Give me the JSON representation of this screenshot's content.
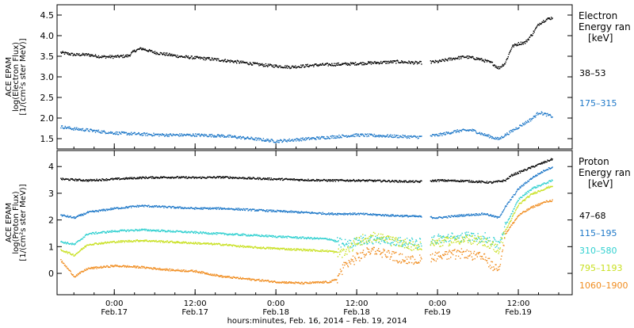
{
  "xaxis": {
    "title": "hours:minutes, Feb. 16, 2014 – Feb. 19, 2014",
    "ticks": [
      {
        "t": 0,
        "time": "0:00",
        "date": "Feb.17"
      },
      {
        "t": 12,
        "time": "12:00",
        "date": "Feb.17"
      },
      {
        "t": 24,
        "time": "0:00",
        "date": "Feb.18"
      },
      {
        "t": 36,
        "time": "12:00",
        "date": "Feb.18"
      },
      {
        "t": 48,
        "time": "0:00",
        "date": "Feb.19"
      },
      {
        "t": 60,
        "time": "12:00",
        "date": "Feb.19"
      }
    ],
    "range_hours": [
      -8.5,
      68
    ]
  },
  "chart_data": [
    {
      "type": "scatter",
      "ylabel_lines": [
        "ACE EPAM",
        "log(Electron Flux)",
        "[1/(cm²s ster MeV)]"
      ],
      "yrange": [
        1.25,
        4.75
      ],
      "yticks": [
        "1.5",
        "2.0",
        "2.5",
        "3.0",
        "3.5",
        "4.0",
        "4.5"
      ],
      "legend_title": [
        "Electron",
        "Energy ran",
        "[keV]"
      ],
      "series": [
        {
          "name": "38–53",
          "color": "#000000",
          "points": [
            [
              -8,
              3.6
            ],
            [
              -6,
              3.55
            ],
            [
              -4,
              3.55
            ],
            [
              -2,
              3.5
            ],
            [
              0,
              3.5
            ],
            [
              2,
              3.52
            ],
            [
              3,
              3.65
            ],
            [
              4,
              3.7
            ],
            [
              6,
              3.6
            ],
            [
              10,
              3.5
            ],
            [
              14,
              3.45
            ],
            [
              18,
              3.38
            ],
            [
              22,
              3.3
            ],
            [
              26,
              3.25
            ],
            [
              30,
              3.3
            ],
            [
              34,
              3.32
            ],
            [
              38,
              3.35
            ],
            [
              42,
              3.38
            ],
            [
              45,
              3.35
            ],
            [
              48,
              3.38
            ],
            [
              50,
              3.45
            ],
            [
              52,
              3.5
            ],
            [
              54,
              3.45
            ],
            [
              56,
              3.35
            ],
            [
              57,
              3.22
            ],
            [
              58,
              3.35
            ],
            [
              59,
              3.75
            ],
            [
              60,
              3.82
            ],
            [
              61,
              3.85
            ],
            [
              62,
              4.05
            ],
            [
              63,
              4.3
            ],
            [
              64,
              4.4
            ],
            [
              65,
              4.45
            ]
          ]
        },
        {
          "name": "175–315",
          "color": "#1E78C8",
          "points": [
            [
              -8,
              1.8
            ],
            [
              -6,
              1.75
            ],
            [
              -4,
              1.72
            ],
            [
              -2,
              1.68
            ],
            [
              0,
              1.65
            ],
            [
              4,
              1.62
            ],
            [
              8,
              1.6
            ],
            [
              12,
              1.6
            ],
            [
              16,
              1.58
            ],
            [
              20,
              1.52
            ],
            [
              24,
              1.45
            ],
            [
              28,
              1.5
            ],
            [
              32,
              1.55
            ],
            [
              36,
              1.6
            ],
            [
              40,
              1.58
            ],
            [
              45,
              1.55
            ],
            [
              48,
              1.6
            ],
            [
              51,
              1.7
            ],
            [
              53,
              1.72
            ],
            [
              55,
              1.6
            ],
            [
              57,
              1.5
            ],
            [
              58,
              1.6
            ],
            [
              60,
              1.8
            ],
            [
              62,
              2.0
            ],
            [
              63,
              2.15
            ],
            [
              65,
              2.05
            ]
          ]
        }
      ]
    },
    {
      "type": "scatter",
      "ylabel_lines": [
        "ACE EPAM",
        "log(Proton Flux)",
        "[1/(cm²s ster MeV)]"
      ],
      "yrange": [
        -0.8,
        4.6
      ],
      "yticks": [
        "0",
        "1",
        "2",
        "3",
        "4"
      ],
      "legend_title": [
        "Proton",
        "Energy ran",
        "[keV]"
      ],
      "series": [
        {
          "name": "47–68",
          "color": "#000000",
          "points": [
            [
              -8,
              3.55
            ],
            [
              -4,
              3.5
            ],
            [
              0,
              3.55
            ],
            [
              4,
              3.6
            ],
            [
              8,
              3.62
            ],
            [
              12,
              3.6
            ],
            [
              16,
              3.62
            ],
            [
              20,
              3.58
            ],
            [
              24,
              3.55
            ],
            [
              28,
              3.52
            ],
            [
              32,
              3.5
            ],
            [
              36,
              3.5
            ],
            [
              40,
              3.48
            ],
            [
              45,
              3.45
            ],
            [
              48,
              3.5
            ],
            [
              52,
              3.48
            ],
            [
              56,
              3.42
            ],
            [
              58,
              3.5
            ],
            [
              59,
              3.7
            ],
            [
              61,
              3.9
            ],
            [
              63,
              4.1
            ],
            [
              65,
              4.3
            ]
          ]
        },
        {
          "name": "115–195",
          "color": "#1E78C8",
          "points": [
            [
              -8,
              2.2
            ],
            [
              -6,
              2.1
            ],
            [
              -4,
              2.3
            ],
            [
              0,
              2.45
            ],
            [
              4,
              2.55
            ],
            [
              8,
              2.5
            ],
            [
              12,
              2.45
            ],
            [
              16,
              2.45
            ],
            [
              20,
              2.4
            ],
            [
              24,
              2.35
            ],
            [
              28,
              2.3
            ],
            [
              32,
              2.25
            ],
            [
              36,
              2.25
            ],
            [
              40,
              2.2
            ],
            [
              45,
              2.15
            ],
            [
              48,
              2.1
            ],
            [
              52,
              2.2
            ],
            [
              55,
              2.25
            ],
            [
              57,
              2.1
            ],
            [
              58,
              2.5
            ],
            [
              60,
              3.2
            ],
            [
              62,
              3.6
            ],
            [
              64,
              3.9
            ],
            [
              65,
              4.0
            ]
          ]
        },
        {
          "name": "310–580",
          "color": "#30D0D0",
          "points": [
            [
              -8,
              1.2
            ],
            [
              -6,
              1.1
            ],
            [
              -4,
              1.5
            ],
            [
              0,
              1.6
            ],
            [
              4,
              1.65
            ],
            [
              8,
              1.6
            ],
            [
              12,
              1.55
            ],
            [
              16,
              1.5
            ],
            [
              20,
              1.45
            ],
            [
              24,
              1.4
            ],
            [
              28,
              1.35
            ],
            [
              32,
              1.3
            ],
            [
              34,
              1.1
            ],
            [
              36,
              1.2
            ],
            [
              38,
              1.3
            ],
            [
              40,
              1.25
            ],
            [
              42,
              1.2
            ],
            [
              45,
              1.15
            ],
            [
              48,
              1.3
            ],
            [
              52,
              1.4
            ],
            [
              55,
              1.35
            ],
            [
              57,
              1.1
            ],
            [
              58,
              1.8
            ],
            [
              60,
              2.8
            ],
            [
              62,
              3.2
            ],
            [
              64,
              3.4
            ],
            [
              65,
              3.5
            ]
          ]
        },
        {
          "name": "795–1193",
          "color": "#C8E020",
          "points": [
            [
              -8,
              0.9
            ],
            [
              -6,
              0.7
            ],
            [
              -4,
              1.1
            ],
            [
              0,
              1.2
            ],
            [
              4,
              1.25
            ],
            [
              8,
              1.2
            ],
            [
              12,
              1.15
            ],
            [
              16,
              1.1
            ],
            [
              20,
              1.0
            ],
            [
              24,
              0.95
            ],
            [
              28,
              0.9
            ],
            [
              32,
              0.85
            ],
            [
              34,
              0.75
            ],
            [
              36,
              1.2
            ],
            [
              38,
              1.4
            ],
            [
              40,
              1.3
            ],
            [
              42,
              1.2
            ],
            [
              45,
              1.0
            ],
            [
              48,
              1.2
            ],
            [
              52,
              1.3
            ],
            [
              55,
              1.2
            ],
            [
              57,
              0.9
            ],
            [
              58,
              1.6
            ],
            [
              60,
              2.6
            ],
            [
              62,
              3.0
            ],
            [
              64,
              3.2
            ],
            [
              65,
              3.3
            ]
          ]
        },
        {
          "name": "1060–1900",
          "color": "#F08C1E",
          "points": [
            [
              -8,
              0.5
            ],
            [
              -6,
              -0.1
            ],
            [
              -4,
              0.2
            ],
            [
              0,
              0.3
            ],
            [
              4,
              0.25
            ],
            [
              8,
              0.15
            ],
            [
              12,
              0.1
            ],
            [
              16,
              -0.1
            ],
            [
              20,
              -0.2
            ],
            [
              24,
              -0.3
            ],
            [
              28,
              -0.35
            ],
            [
              32,
              -0.3
            ],
            [
              33,
              -0.2
            ],
            [
              34,
              0.3
            ],
            [
              36,
              0.6
            ],
            [
              38,
              0.9
            ],
            [
              40,
              0.8
            ],
            [
              42,
              0.6
            ],
            [
              44,
              0.5
            ],
            [
              45,
              0.5
            ],
            [
              48,
              0.7
            ],
            [
              52,
              0.75
            ],
            [
              55,
              0.6
            ],
            [
              56,
              0.3
            ],
            [
              57,
              0.2
            ],
            [
              58,
              1.5
            ],
            [
              60,
              2.2
            ],
            [
              62,
              2.5
            ],
            [
              64,
              2.7
            ],
            [
              65,
              2.75
            ]
          ]
        }
      ]
    }
  ]
}
